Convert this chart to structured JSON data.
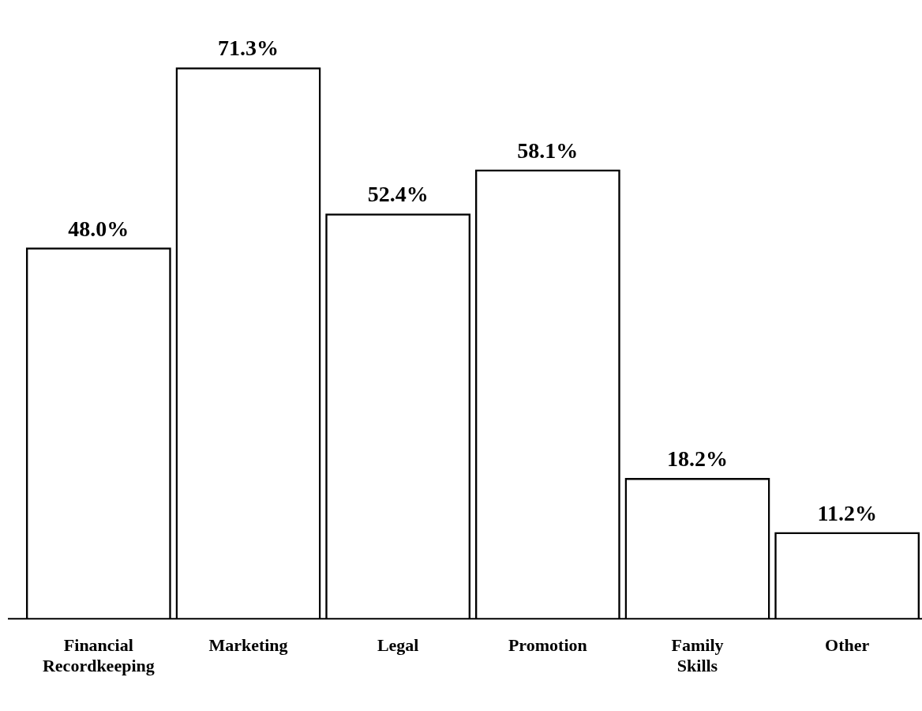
{
  "chart_data": {
    "type": "bar",
    "categories": [
      "Financial Recordkeeping",
      "Marketing",
      "Legal",
      "Promotion",
      "Family Skills",
      "Other"
    ],
    "values": [
      48.0,
      71.3,
      52.4,
      58.1,
      18.2,
      11.2
    ],
    "value_labels": [
      "48.0%",
      "71.3%",
      "52.4%",
      "58.1%",
      "18.2%",
      "11.2%"
    ],
    "color": "#000000",
    "tick_labels": "x",
    "grid": false,
    "legend": false
  }
}
